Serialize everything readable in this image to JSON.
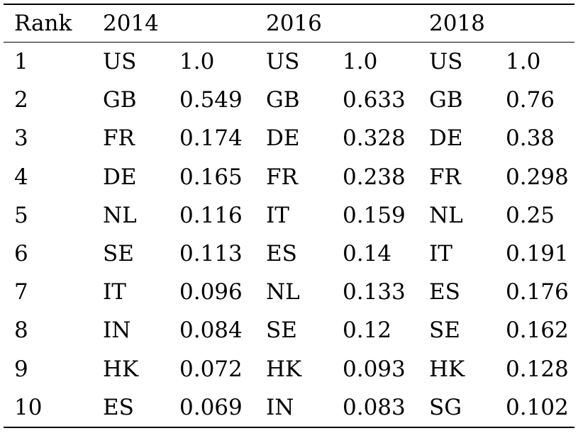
{
  "table": {
    "header": {
      "rank": "Rank",
      "years": [
        "2014",
        "2016",
        "2018"
      ]
    },
    "rows": [
      {
        "rank": "1",
        "y2014": {
          "code": "US",
          "value": "1.0"
        },
        "y2016": {
          "code": "US",
          "value": "1.0"
        },
        "y2018": {
          "code": "US",
          "value": "1.0"
        }
      },
      {
        "rank": "2",
        "y2014": {
          "code": "GB",
          "value": "0.549"
        },
        "y2016": {
          "code": "GB",
          "value": "0.633"
        },
        "y2018": {
          "code": "GB",
          "value": "0.76"
        }
      },
      {
        "rank": "3",
        "y2014": {
          "code": "FR",
          "value": "0.174"
        },
        "y2016": {
          "code": "DE",
          "value": "0.328"
        },
        "y2018": {
          "code": "DE",
          "value": "0.38"
        }
      },
      {
        "rank": "4",
        "y2014": {
          "code": "DE",
          "value": "0.165"
        },
        "y2016": {
          "code": "FR",
          "value": "0.238"
        },
        "y2018": {
          "code": "FR",
          "value": "0.298"
        }
      },
      {
        "rank": "5",
        "y2014": {
          "code": "NL",
          "value": "0.116"
        },
        "y2016": {
          "code": "IT",
          "value": "0.159"
        },
        "y2018": {
          "code": "NL",
          "value": "0.25"
        }
      },
      {
        "rank": "6",
        "y2014": {
          "code": "SE",
          "value": "0.113"
        },
        "y2016": {
          "code": "ES",
          "value": "0.14"
        },
        "y2018": {
          "code": "IT",
          "value": "0.191"
        }
      },
      {
        "rank": "7",
        "y2014": {
          "code": "IT",
          "value": "0.096"
        },
        "y2016": {
          "code": "NL",
          "value": "0.133"
        },
        "y2018": {
          "code": "ES",
          "value": "0.176"
        }
      },
      {
        "rank": "8",
        "y2014": {
          "code": "IN",
          "value": "0.084"
        },
        "y2016": {
          "code": "SE",
          "value": "0.12"
        },
        "y2018": {
          "code": "SE",
          "value": "0.162"
        }
      },
      {
        "rank": "9",
        "y2014": {
          "code": "HK",
          "value": "0.072"
        },
        "y2016": {
          "code": "HK",
          "value": "0.093"
        },
        "y2018": {
          "code": "HK",
          "value": "0.128"
        }
      },
      {
        "rank": "10",
        "y2014": {
          "code": "ES",
          "value": "0.069"
        },
        "y2016": {
          "code": "IN",
          "value": "0.083"
        },
        "y2018": {
          "code": "SG",
          "value": "0.102"
        }
      }
    ]
  }
}
